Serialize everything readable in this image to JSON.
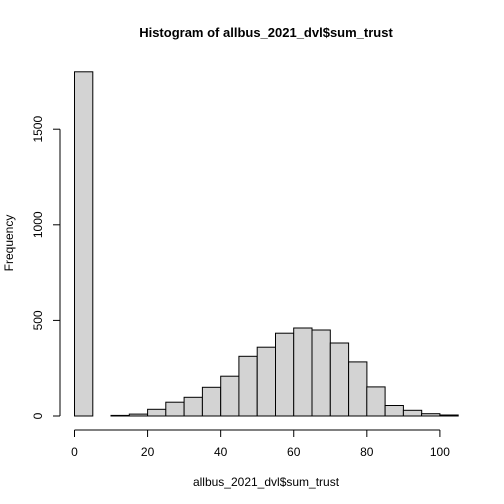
{
  "chart_data": {
    "type": "bar",
    "subtype": "histogram",
    "title": "Histogram of allbus_2021_dvl$sum_trust",
    "xlabel": "allbus_2021_dvl$sum_trust",
    "ylabel": "Frequency",
    "bin_width": 5,
    "bins": [
      {
        "x0": 0,
        "x1": 5,
        "count": 1800
      },
      {
        "x0": 5,
        "x1": 10,
        "count": 0
      },
      {
        "x0": 10,
        "x1": 15,
        "count": 3
      },
      {
        "x0": 15,
        "x1": 20,
        "count": 10
      },
      {
        "x0": 20,
        "x1": 25,
        "count": 35
      },
      {
        "x0": 25,
        "x1": 30,
        "count": 72
      },
      {
        "x0": 30,
        "x1": 35,
        "count": 98
      },
      {
        "x0": 35,
        "x1": 40,
        "count": 150
      },
      {
        "x0": 40,
        "x1": 45,
        "count": 208
      },
      {
        "x0": 45,
        "x1": 50,
        "count": 312
      },
      {
        "x0": 50,
        "x1": 55,
        "count": 360
      },
      {
        "x0": 55,
        "x1": 60,
        "count": 433
      },
      {
        "x0": 60,
        "x1": 65,
        "count": 460
      },
      {
        "x0": 65,
        "x1": 70,
        "count": 450
      },
      {
        "x0": 70,
        "x1": 75,
        "count": 382
      },
      {
        "x0": 75,
        "x1": 80,
        "count": 283
      },
      {
        "x0": 80,
        "x1": 85,
        "count": 152
      },
      {
        "x0": 85,
        "x1": 90,
        "count": 55
      },
      {
        "x0": 90,
        "x1": 95,
        "count": 30
      },
      {
        "x0": 95,
        "x1": 100,
        "count": 12
      },
      {
        "x0": 100,
        "x1": 105,
        "count": 5
      }
    ],
    "xlim": [
      0,
      105
    ],
    "ylim": [
      0,
      1800
    ],
    "x_ticks": [
      0,
      20,
      40,
      60,
      80,
      100
    ],
    "y_ticks": [
      0,
      500,
      1000,
      1500
    ],
    "bar_fill": "#d3d3d3",
    "bar_stroke": "#000000",
    "grid": false,
    "legend": "none"
  }
}
